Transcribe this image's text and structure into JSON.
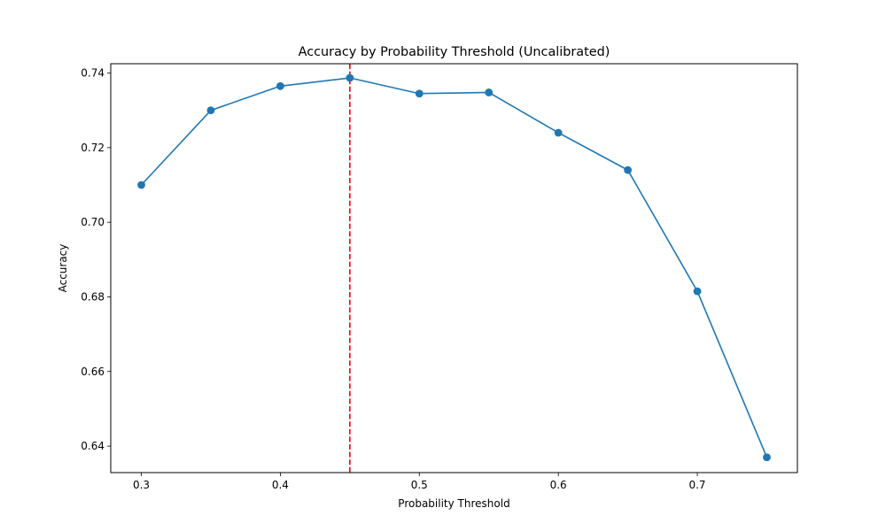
{
  "chart_data": {
    "type": "line",
    "title": "Accuracy by Probability Threshold (Uncalibrated)",
    "xlabel": "Probability Threshold",
    "ylabel": "Accuracy",
    "xlim": [
      0.278,
      0.772
    ],
    "ylim": [
      0.6329,
      0.7425
    ],
    "x_ticks": [
      0.3,
      0.4,
      0.5,
      0.6,
      0.7
    ],
    "x_tick_labels": [
      "0.3",
      "0.4",
      "0.5",
      "0.6",
      "0.7"
    ],
    "y_ticks": [
      0.64,
      0.66,
      0.68,
      0.7,
      0.72,
      0.74
    ],
    "y_tick_labels": [
      "0.64",
      "0.66",
      "0.68",
      "0.70",
      "0.72",
      "0.74"
    ],
    "grid": false,
    "legend": "none",
    "series": [
      {
        "x": [
          0.3,
          0.35,
          0.4,
          0.45,
          0.5,
          0.55,
          0.6,
          0.65,
          0.7,
          0.75
        ],
        "values": [
          0.71,
          0.73,
          0.7365,
          0.7387,
          0.7345,
          0.7348,
          0.724,
          0.714,
          0.6815,
          0.637
        ],
        "color": "#1f77b4",
        "marker": "circle"
      }
    ],
    "vline": {
      "x": 0.45,
      "color": "#ff0000",
      "style": "dashed"
    }
  }
}
